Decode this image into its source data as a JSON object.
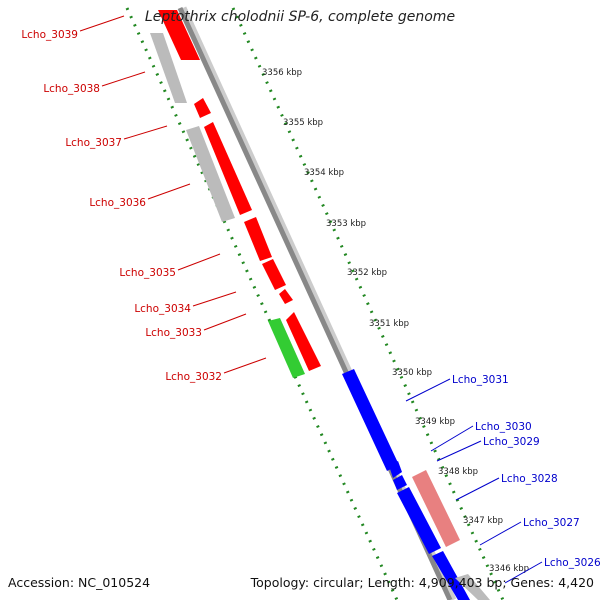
{
  "title": "Leptothrix cholodnii SP-6, complete genome",
  "accession_text": "Accession: NC_010524",
  "topology_text": "Topology: circular; Length: 4,909,403 bp; Genes: 4,420",
  "colors": {
    "forward_gene": "#ff0000",
    "reverse_gene": "#0000ff",
    "rna_gene": "#33cc33",
    "pseudo_gene": "#bbbbbb",
    "pale_gene": "#e88080",
    "backbone": "#888888",
    "tick": "#228822"
  },
  "scale_labels": [
    "3356 kbp",
    "3355 kbp",
    "3354 kbp",
    "3353 kbp",
    "3352 kbp",
    "3351 kbp",
    "3350 kbp",
    "3349 kbp",
    "3348 kbp",
    "3347 kbp",
    "3346 kbp"
  ],
  "genes_left": [
    {
      "name": "Lcho_3039",
      "color": "#cc0000"
    },
    {
      "name": "Lcho_3038",
      "color": "#cc0000"
    },
    {
      "name": "Lcho_3037",
      "color": "#cc0000"
    },
    {
      "name": "Lcho_3036",
      "color": "#cc0000"
    },
    {
      "name": "Lcho_3035",
      "color": "#cc0000"
    },
    {
      "name": "Lcho_3034",
      "color": "#cc0000"
    },
    {
      "name": "Lcho_3033",
      "color": "#cc0000"
    },
    {
      "name": "Lcho_3032",
      "color": "#cc0000"
    }
  ],
  "genes_right": [
    {
      "name": "Lcho_3031",
      "color": "#0000cc"
    },
    {
      "name": "Lcho_3030",
      "color": "#0000cc"
    },
    {
      "name": "Lcho_3029",
      "color": "#0000cc"
    },
    {
      "name": "Lcho_3028",
      "color": "#0000cc"
    },
    {
      "name": "Lcho_3027",
      "color": "#0000cc"
    },
    {
      "name": "Lcho_3026",
      "color": "#0000cc"
    }
  ]
}
